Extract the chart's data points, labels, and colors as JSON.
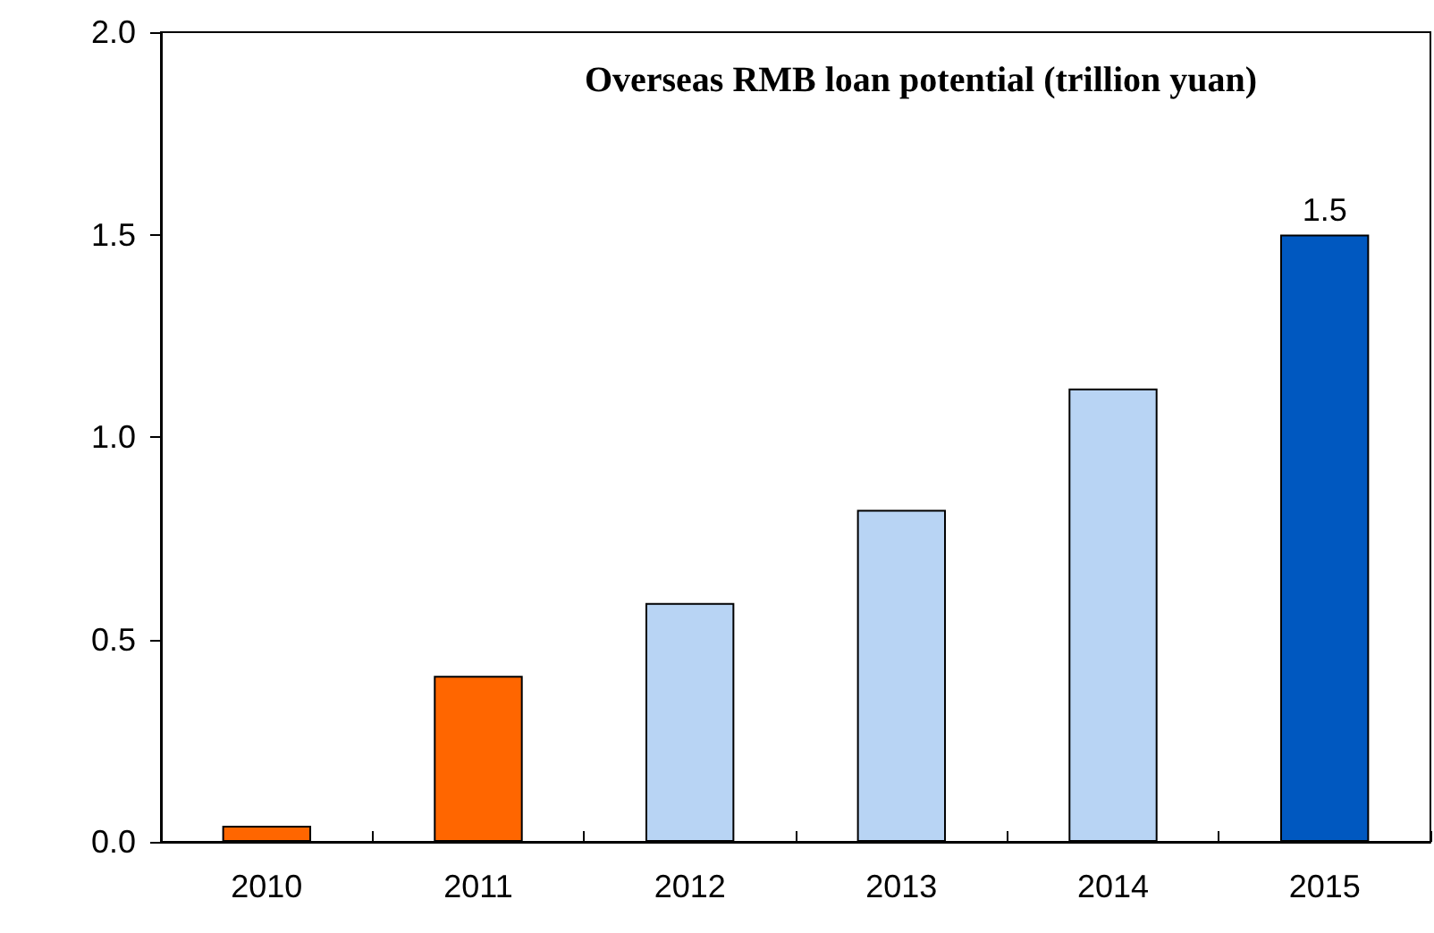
{
  "chart_data": {
    "type": "bar",
    "title": "Overseas RMB loan potential (trillion yuan)",
    "categories": [
      "2010",
      "2011",
      "2012",
      "2013",
      "2014",
      "2015"
    ],
    "values": [
      0.04,
      0.41,
      0.59,
      0.82,
      1.12,
      1.5
    ],
    "value_labels": [
      null,
      null,
      null,
      null,
      null,
      "1.5"
    ],
    "colors": [
      "#ff6600",
      "#ff6600",
      "#b8d4f4",
      "#b8d4f4",
      "#b8d4f4",
      "#0058c0"
    ],
    "ylim": [
      0,
      2
    ],
    "yticks": [
      {
        "value": 0,
        "label": "0.0"
      },
      {
        "value": 0.5,
        "label": "0.5"
      },
      {
        "value": 1,
        "label": "1.0"
      },
      {
        "value": 1.5,
        "label": "1.5"
      },
      {
        "value": 2,
        "label": "2.0"
      }
    ],
    "grid": false
  }
}
